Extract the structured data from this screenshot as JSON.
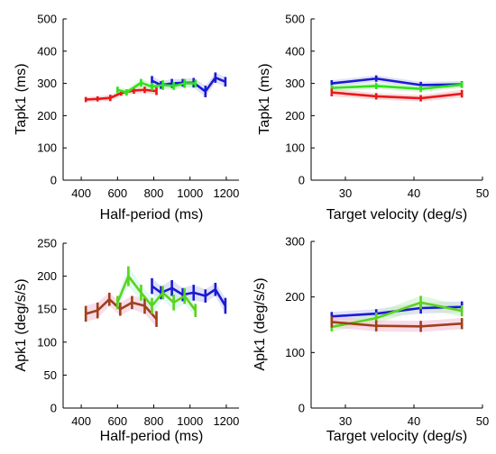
{
  "chart_data": [
    {
      "type": "line",
      "xlabel": "Half-period (ms)",
      "ylabel": "Tapk1 (ms)",
      "xlim": [
        300,
        1270
      ],
      "ylim": [
        0,
        500
      ],
      "xticks": [
        400,
        600,
        800,
        1000,
        1200
      ],
      "yticks": [
        0,
        100,
        200,
        300,
        400,
        500
      ],
      "series": [
        {
          "color": "#e8191c",
          "x": [
            425,
            490,
            560,
            620,
            690,
            750,
            815
          ],
          "y": [
            250,
            252,
            255,
            270,
            278,
            280,
            276
          ],
          "err": [
            8,
            8,
            10,
            8,
            10,
            10,
            12
          ],
          "band": "#f6c0c0"
        },
        {
          "color": "#1a1ad4",
          "x": [
            790,
            840,
            900,
            960,
            1020,
            1085,
            1140,
            1195
          ],
          "y": [
            308,
            295,
            300,
            302,
            302,
            275,
            318,
            305
          ],
          "err": [
            15,
            12,
            14,
            12,
            15,
            18,
            16,
            15
          ],
          "band": "#c8c8ee"
        },
        {
          "color": "#2fe31c",
          "x": [
            600,
            650,
            730,
            790,
            850,
            910,
            970,
            1030
          ],
          "y": [
            280,
            272,
            302,
            290,
            295,
            292,
            300,
            300
          ],
          "err": [
            10,
            10,
            12,
            12,
            15,
            12,
            14,
            12
          ],
          "band": "#c8f0c0"
        }
      ]
    },
    {
      "type": "line",
      "xlabel": "Target velocity (deg/s)",
      "ylabel": "Tapk1 (ms)",
      "xlim": [
        25,
        50
      ],
      "ylim": [
        0,
        500
      ],
      "xticks": [
        30,
        40,
        50
      ],
      "yticks": [
        0,
        100,
        200,
        300,
        400,
        500
      ],
      "series": [
        {
          "color": "#1a1ad4",
          "x": [
            28,
            34.5,
            41,
            47
          ],
          "y": [
            300,
            315,
            295,
            297
          ],
          "err": [
            10,
            10,
            10,
            10
          ],
          "band": "#c8c8ee"
        },
        {
          "color": "#2fe31c",
          "x": [
            28,
            34.5,
            41,
            47
          ],
          "y": [
            286,
            292,
            283,
            296
          ],
          "err": [
            10,
            10,
            10,
            10
          ],
          "band": "#c8f0c0"
        },
        {
          "color": "#e8191c",
          "x": [
            28,
            34.5,
            41,
            47
          ],
          "y": [
            272,
            260,
            254,
            268
          ],
          "err": [
            12,
            10,
            10,
            12
          ],
          "band": "#f6c0c0"
        }
      ]
    },
    {
      "type": "line",
      "xlabel": "Half-period (ms)",
      "ylabel": "Apk1 (deg/s/s)",
      "xlim": [
        300,
        1270
      ],
      "ylim": [
        0,
        250
      ],
      "xticks": [
        400,
        600,
        800,
        1000,
        1200
      ],
      "yticks": [
        0,
        50,
        100,
        150,
        200,
        250
      ],
      "series": [
        {
          "color": "#a0401a",
          "x": [
            425,
            490,
            555,
            615,
            680,
            750,
            815
          ],
          "y": [
            143,
            148,
            165,
            150,
            160,
            155,
            135
          ],
          "err": [
            12,
            12,
            10,
            10,
            10,
            12,
            12
          ],
          "band": "#f2c0d8"
        },
        {
          "color": "#1a1ad4",
          "x": [
            790,
            840,
            900,
            960,
            1020,
            1085,
            1140,
            1195
          ],
          "y": [
            185,
            175,
            182,
            172,
            175,
            170,
            180,
            155
          ],
          "err": [
            12,
            10,
            12,
            10,
            12,
            10,
            10,
            12
          ],
          "band": "#c8c8ee"
        },
        {
          "color": "#5ad41c",
          "x": [
            600,
            660,
            730,
            790,
            850,
            910,
            970,
            1030
          ],
          "y": [
            160,
            200,
            175,
            155,
            175,
            160,
            170,
            148
          ],
          "err": [
            10,
            15,
            12,
            12,
            10,
            12,
            12,
            10
          ],
          "band": "#c8f4e8"
        }
      ]
    },
    {
      "type": "line",
      "xlabel": "Target velocity (deg/s)",
      "ylabel": "Apk1 (deg/s/s)",
      "xlim": [
        25,
        50
      ],
      "ylim": [
        0,
        300
      ],
      "xticks": [
        30,
        40,
        50
      ],
      "yticks": [
        0,
        100,
        200,
        300
      ],
      "series": [
        {
          "color": "#1a1ad4",
          "x": [
            28,
            34.5,
            41,
            47
          ],
          "y": [
            165,
            170,
            180,
            182
          ],
          "err": [
            8,
            8,
            10,
            10
          ],
          "band": "#c8c8ee"
        },
        {
          "color": "#5ad41c",
          "x": [
            28,
            34.5,
            41,
            47
          ],
          "y": [
            146,
            162,
            190,
            175
          ],
          "err": [
            8,
            10,
            12,
            10
          ],
          "band": "#c8f0c0"
        },
        {
          "color": "#a0401a",
          "x": [
            28,
            34.5,
            41,
            47
          ],
          "y": [
            155,
            148,
            147,
            152
          ],
          "err": [
            10,
            10,
            10,
            10
          ],
          "band": "#f2c0d8"
        }
      ]
    }
  ]
}
